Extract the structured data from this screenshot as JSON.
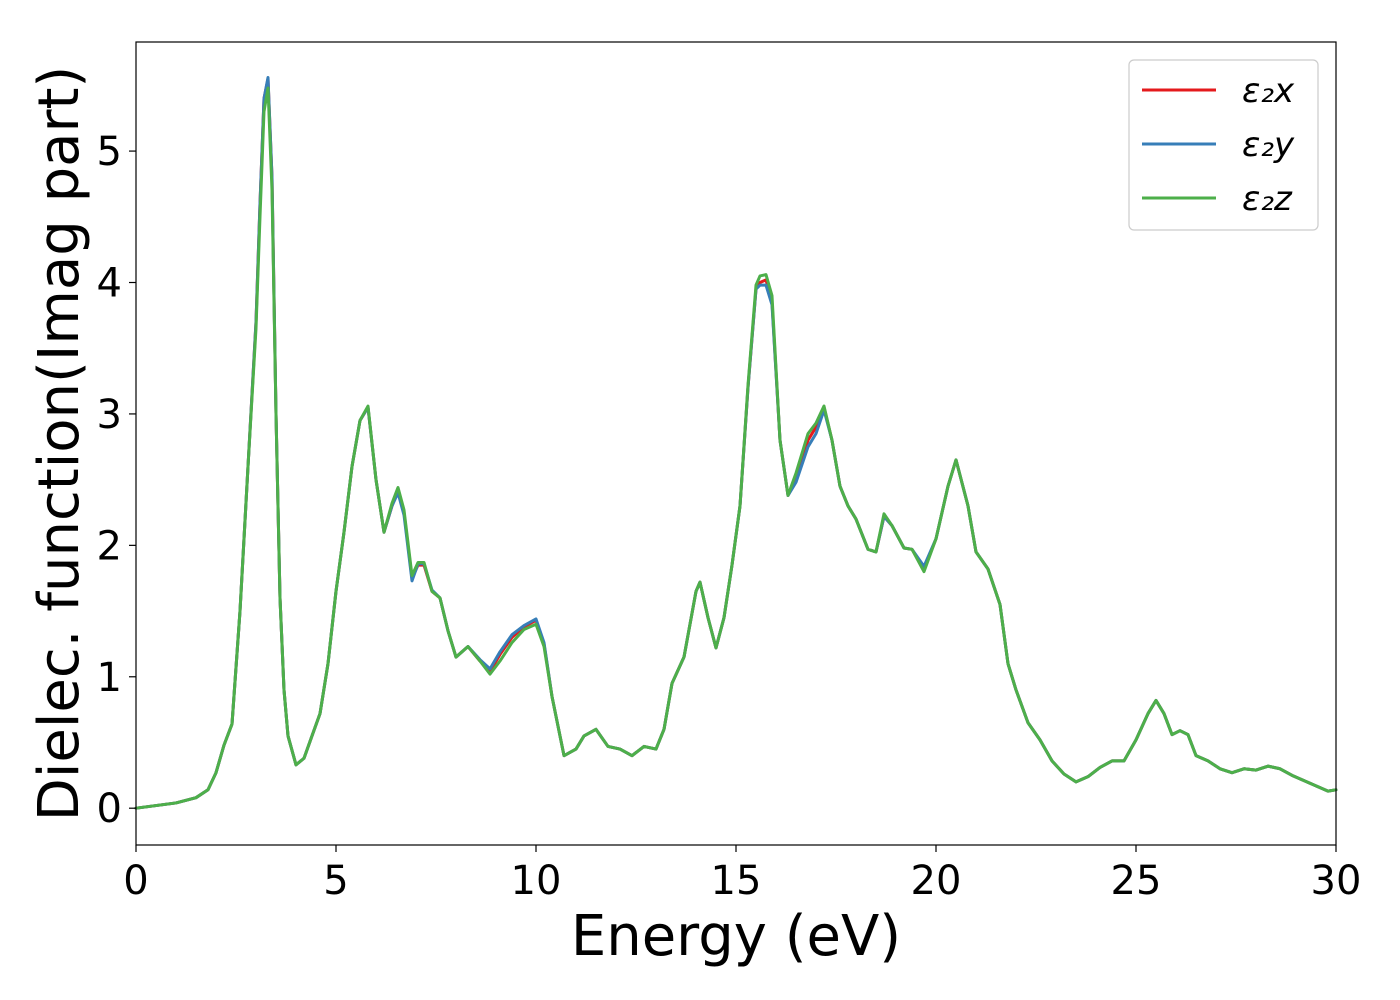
{
  "chart_data": {
    "type": "line",
    "title": "",
    "xlabel": "Energy (eV)",
    "ylabel": "Dielec. function(Imag part)",
    "xlim": [
      0,
      30
    ],
    "ylim": [
      -0.28,
      5.83
    ],
    "xticks": [
      0,
      5,
      10,
      15,
      20,
      25,
      30
    ],
    "yticks": [
      0,
      1,
      2,
      3,
      4,
      5
    ],
    "grid": false,
    "legend_position": "top-right",
    "x": [
      0,
      0.5,
      1,
      1.5,
      1.8,
      2,
      2.2,
      2.4,
      2.6,
      2.8,
      3,
      3.1,
      3.2,
      3.3,
      3.4,
      3.5,
      3.6,
      3.7,
      3.8,
      4,
      4.2,
      4.4,
      4.6,
      4.8,
      5,
      5.2,
      5.4,
      5.6,
      5.8,
      6,
      6.2,
      6.4,
      6.55,
      6.7,
      6.9,
      7.05,
      7.2,
      7.4,
      7.6,
      7.8,
      8,
      8.3,
      8.6,
      8.85,
      9.1,
      9.4,
      9.7,
      10,
      10.2,
      10.4,
      10.7,
      11,
      11.2,
      11.5,
      11.8,
      12.1,
      12.4,
      12.7,
      13,
      13.2,
      13.4,
      13.7,
      14,
      14.1,
      14.3,
      14.5,
      14.7,
      14.9,
      15.1,
      15.3,
      15.5,
      15.6,
      15.75,
      15.9,
      16.1,
      16.3,
      16.5,
      16.8,
      17,
      17.2,
      17.4,
      17.6,
      17.8,
      18,
      18.3,
      18.5,
      18.7,
      18.9,
      19.2,
      19.4,
      19.7,
      20,
      20.3,
      20.5,
      20.8,
      21,
      21.3,
      21.6,
      21.8,
      22,
      22.3,
      22.6,
      22.9,
      23.2,
      23.5,
      23.8,
      24.1,
      24.4,
      24.7,
      25,
      25.3,
      25.5,
      25.7,
      25.9,
      26.1,
      26.3,
      26.5,
      26.8,
      27.1,
      27.4,
      27.7,
      28,
      28.3,
      28.6,
      28.9,
      29.2,
      29.5,
      29.8,
      30
    ],
    "series": [
      {
        "name": "ε₂x",
        "color": "#e41a1c",
        "values": [
          0,
          0.02,
          0.04,
          0.08,
          0.14,
          0.27,
          0.48,
          0.64,
          1.5,
          2.6,
          3.7,
          4.6,
          5.4,
          5.55,
          4.8,
          3.0,
          1.6,
          0.9,
          0.55,
          0.33,
          0.38,
          0.55,
          0.72,
          1.1,
          1.65,
          2.1,
          2.6,
          2.95,
          3.05,
          2.5,
          2.1,
          2.3,
          2.42,
          2.25,
          1.75,
          1.85,
          1.85,
          1.65,
          1.6,
          1.35,
          1.15,
          1.23,
          1.12,
          1.04,
          1.17,
          1.3,
          1.38,
          1.43,
          1.25,
          0.85,
          0.4,
          0.45,
          0.55,
          0.6,
          0.47,
          0.45,
          0.4,
          0.47,
          0.45,
          0.6,
          0.95,
          1.15,
          1.65,
          1.72,
          1.45,
          1.22,
          1.45,
          1.85,
          2.3,
          3.2,
          3.95,
          4.0,
          4.02,
          3.85,
          2.8,
          2.38,
          2.5,
          2.8,
          2.9,
          3.05,
          2.8,
          2.45,
          2.3,
          2.2,
          1.97,
          1.95,
          2.22,
          2.15,
          1.98,
          1.97,
          1.82,
          2.05,
          2.45,
          2.65,
          2.3,
          1.95,
          1.82,
          1.55,
          1.1,
          0.9,
          0.65,
          0.52,
          0.36,
          0.26,
          0.2,
          0.24,
          0.31,
          0.36,
          0.36,
          0.52,
          0.72,
          0.82,
          0.72,
          0.56,
          0.59,
          0.56,
          0.4,
          0.36,
          0.3,
          0.27,
          0.3,
          0.29,
          0.32,
          0.3,
          0.25,
          0.21,
          0.17,
          0.13,
          0.14
        ]
      },
      {
        "name": "ε₂y",
        "color": "#377eb8",
        "values": [
          0,
          0.02,
          0.04,
          0.08,
          0.14,
          0.27,
          0.48,
          0.64,
          1.5,
          2.6,
          3.7,
          4.6,
          5.4,
          5.56,
          4.8,
          3.0,
          1.6,
          0.9,
          0.55,
          0.33,
          0.38,
          0.55,
          0.72,
          1.1,
          1.65,
          2.1,
          2.6,
          2.95,
          3.05,
          2.5,
          2.1,
          2.3,
          2.4,
          2.23,
          1.73,
          1.86,
          1.86,
          1.66,
          1.6,
          1.35,
          1.15,
          1.23,
          1.13,
          1.06,
          1.19,
          1.32,
          1.39,
          1.44,
          1.26,
          0.85,
          0.4,
          0.45,
          0.55,
          0.6,
          0.47,
          0.45,
          0.4,
          0.47,
          0.45,
          0.6,
          0.95,
          1.15,
          1.65,
          1.72,
          1.45,
          1.22,
          1.45,
          1.85,
          2.3,
          3.2,
          3.95,
          3.98,
          3.98,
          3.83,
          2.8,
          2.38,
          2.48,
          2.75,
          2.85,
          3.03,
          2.8,
          2.45,
          2.3,
          2.2,
          1.97,
          1.95,
          2.22,
          2.15,
          1.98,
          1.97,
          1.84,
          2.05,
          2.45,
          2.65,
          2.3,
          1.95,
          1.82,
          1.55,
          1.1,
          0.9,
          0.65,
          0.52,
          0.36,
          0.26,
          0.2,
          0.24,
          0.31,
          0.36,
          0.36,
          0.52,
          0.72,
          0.82,
          0.72,
          0.56,
          0.59,
          0.56,
          0.4,
          0.36,
          0.3,
          0.27,
          0.3,
          0.29,
          0.32,
          0.3,
          0.25,
          0.21,
          0.17,
          0.13,
          0.14
        ]
      },
      {
        "name": "ε₂z",
        "color": "#4daf4a",
        "values": [
          0,
          0.02,
          0.04,
          0.08,
          0.14,
          0.27,
          0.48,
          0.64,
          1.5,
          2.6,
          3.65,
          4.5,
          5.3,
          5.48,
          4.7,
          3.0,
          1.6,
          0.9,
          0.55,
          0.33,
          0.38,
          0.55,
          0.72,
          1.1,
          1.65,
          2.1,
          2.6,
          2.95,
          3.06,
          2.5,
          2.1,
          2.32,
          2.44,
          2.27,
          1.77,
          1.87,
          1.87,
          1.65,
          1.6,
          1.35,
          1.15,
          1.23,
          1.12,
          1.02,
          1.12,
          1.26,
          1.36,
          1.4,
          1.23,
          0.85,
          0.4,
          0.45,
          0.55,
          0.6,
          0.47,
          0.45,
          0.4,
          0.47,
          0.45,
          0.6,
          0.95,
          1.15,
          1.65,
          1.72,
          1.45,
          1.22,
          1.45,
          1.85,
          2.3,
          3.22,
          3.98,
          4.05,
          4.06,
          3.9,
          2.8,
          2.38,
          2.55,
          2.85,
          2.93,
          3.06,
          2.8,
          2.45,
          2.3,
          2.2,
          1.97,
          1.95,
          2.24,
          2.15,
          1.98,
          1.97,
          1.8,
          2.05,
          2.45,
          2.65,
          2.3,
          1.95,
          1.82,
          1.55,
          1.1,
          0.9,
          0.65,
          0.52,
          0.36,
          0.26,
          0.2,
          0.24,
          0.31,
          0.36,
          0.36,
          0.52,
          0.72,
          0.82,
          0.72,
          0.56,
          0.59,
          0.56,
          0.4,
          0.36,
          0.3,
          0.27,
          0.3,
          0.29,
          0.32,
          0.3,
          0.25,
          0.21,
          0.17,
          0.13,
          0.14
        ]
      }
    ]
  }
}
